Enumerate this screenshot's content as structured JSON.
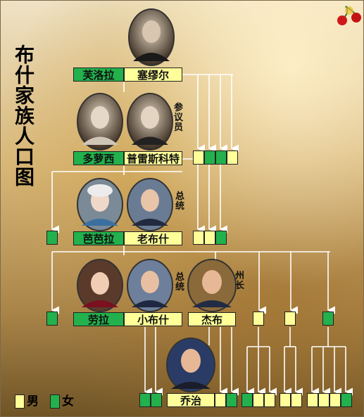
{
  "title": "布什家族人口图",
  "people": {
    "prescott_wife": "芙洛拉",
    "samuel": "塞缪尔",
    "dorothy": "多萝西",
    "prescott": "普雷斯科特",
    "barbara": "芭芭拉",
    "george_hw": "老布什",
    "laura": "劳拉",
    "george_w": "小布什",
    "jeb": "杰布",
    "george_p": "乔治"
  },
  "titles": {
    "senator": "参议员",
    "president_1": "总统",
    "president_2": "总统",
    "governor": "州长"
  },
  "legend": {
    "male": "男",
    "female": "女"
  },
  "colors": {
    "male": "#ffff99",
    "female": "#22b14c"
  }
}
